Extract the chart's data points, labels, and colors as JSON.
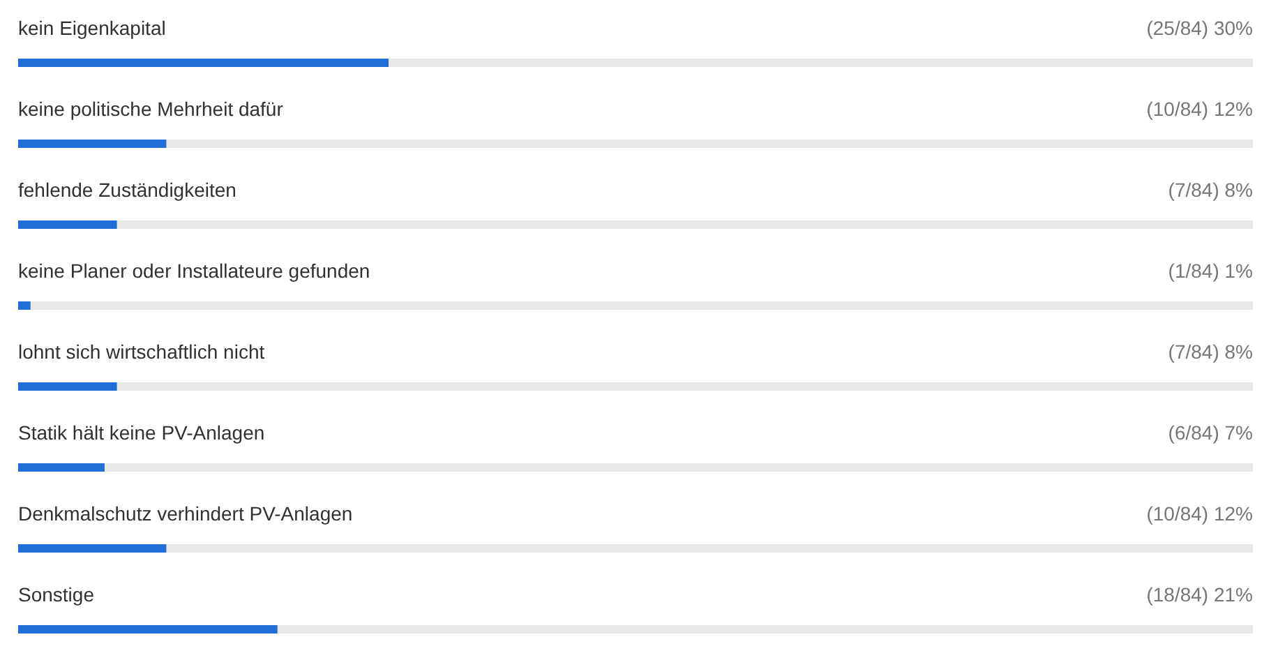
{
  "chart_data": {
    "type": "bar",
    "orientation": "horizontal",
    "categories": [
      "kein Eigenkapital",
      "keine politische Mehrheit dafür",
      "fehlende Zuständigkeiten",
      "keine Planer oder Installateure gefunden",
      "lohnt sich wirtschaftlich nicht",
      "Statik hält keine PV-Anlagen",
      "Denkmalschutz verhindert PV-Anlagen",
      "Sonstige"
    ],
    "values": [
      30,
      12,
      8,
      1,
      8,
      7,
      12,
      21
    ],
    "value_labels": [
      "(25/84) 30%",
      "(10/84) 12%",
      "(7/84) 8%",
      "(1/84) 1%",
      "(7/84) 8%",
      "(6/84) 7%",
      "(10/84) 12%",
      "(18/84) 21%"
    ],
    "color": "#1f6fd6",
    "xlim": [
      0,
      100
    ]
  }
}
